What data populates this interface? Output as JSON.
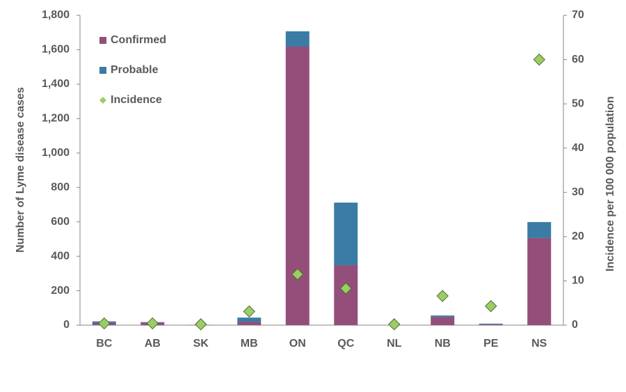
{
  "chart_data": {
    "type": "bar",
    "stacked": true,
    "categories": [
      "BC",
      "AB",
      "SK",
      "MB",
      "ON",
      "QC",
      "NL",
      "NB",
      "PE",
      "NS"
    ],
    "series": [
      {
        "name": "Confirmed",
        "color": "#944e7a",
        "values": [
          14,
          15,
          2,
          20,
          1618,
          348,
          0,
          48,
          5,
          506
        ]
      },
      {
        "name": "Probable",
        "color": "#3a7ca5",
        "values": [
          8,
          3,
          0,
          24,
          89,
          364,
          0,
          8,
          4,
          93
        ]
      },
      {
        "name": "Incidence",
        "color": "#9acd66",
        "axis": "y2",
        "marker": "diamond",
        "values": [
          0.4,
          0.4,
          0.2,
          3.1,
          11.5,
          8.3,
          0.2,
          6.6,
          4.3,
          60
        ]
      }
    ],
    "ylabel": "Number of Lyme disease cases",
    "y2label": "Incidence per 100 000 population",
    "ylim": [
      0,
      1800
    ],
    "yticks": [
      0,
      200,
      400,
      600,
      800,
      {
        "value": 1000,
        "label": "1,000"
      },
      {
        "value": 1200,
        "label": "1,200"
      },
      {
        "value": 1400,
        "label": "1,400"
      },
      {
        "value": 1600,
        "label": "1,600"
      },
      {
        "value": 1800,
        "label": "1,800"
      }
    ],
    "y2lim": [
      0,
      70
    ],
    "y2ticks": [
      0,
      10,
      20,
      30,
      40,
      50,
      60,
      70
    ],
    "grid": false,
    "legend": "upper left"
  }
}
